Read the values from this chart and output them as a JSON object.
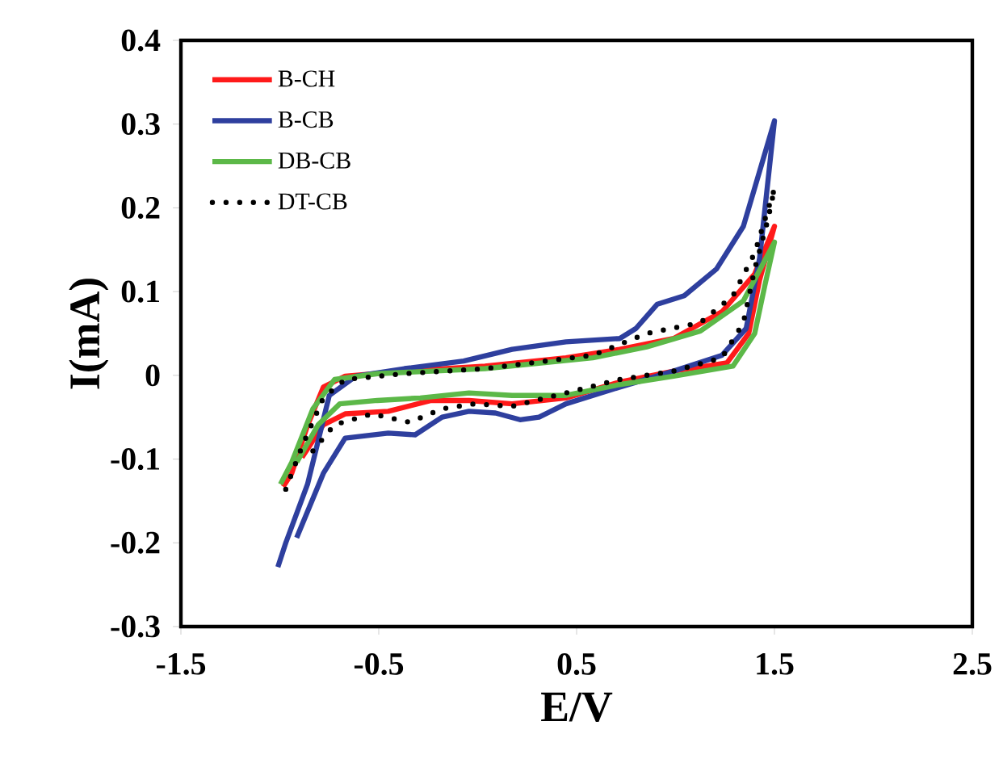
{
  "chart_data": {
    "type": "line",
    "xlabel": "E/V",
    "ylabel": "I(mA)",
    "xlim": [
      -1.5,
      2.5
    ],
    "ylim": [
      -0.3,
      0.4
    ],
    "xticks": [
      -1.5,
      -0.5,
      0.5,
      1.5,
      2.5
    ],
    "yticks": [
      -0.3,
      -0.2,
      -0.1,
      0,
      0.1,
      0.2,
      0.3,
      0.4
    ],
    "grid": false,
    "legend": "top left",
    "marker": "none",
    "series": [
      {
        "name": "B-CH",
        "color": "#ff1a1a",
        "line_style": "solid",
        "x": [
          -0.983,
          -0.94,
          -0.86,
          -0.78,
          -0.67,
          -0.37,
          0.037,
          0.446,
          0.718,
          0.99,
          1.235,
          1.4,
          1.5,
          1.425,
          1.37,
          1.26,
          0.99,
          0.718,
          0.446,
          0.174,
          -0.044,
          -0.235,
          -0.452,
          -0.67,
          -0.78,
          -0.888
        ],
        "values": [
          -0.133,
          -0.117,
          -0.06,
          -0.014,
          -0.001,
          0.005,
          0.011,
          0.021,
          0.031,
          0.044,
          0.076,
          0.121,
          0.178,
          0.114,
          0.05,
          0.015,
          0.005,
          -0.008,
          -0.027,
          -0.034,
          -0.03,
          -0.03,
          -0.043,
          -0.046,
          -0.059,
          -0.098
        ]
      },
      {
        "name": "B-CB",
        "color": "#2e3f9e",
        "line_style": "solid",
        "x": [
          -1.01,
          -0.97,
          -0.86,
          -0.75,
          -0.616,
          -0.37,
          -0.071,
          0.174,
          0.446,
          0.718,
          0.8,
          0.908,
          1.044,
          1.207,
          1.343,
          1.5,
          1.425,
          1.357,
          1.235,
          0.99,
          0.718,
          0.446,
          0.31,
          0.214,
          0.09,
          -0.044,
          -0.18,
          -0.316,
          -0.452,
          -0.67,
          -0.78,
          -0.915
        ],
        "values": [
          -0.229,
          -0.2,
          -0.13,
          -0.024,
          -0.001,
          0.008,
          0.017,
          0.031,
          0.04,
          0.044,
          0.056,
          0.085,
          0.095,
          0.127,
          0.178,
          0.304,
          0.14,
          0.056,
          0.024,
          0.005,
          -0.014,
          -0.034,
          -0.05,
          -0.053,
          -0.045,
          -0.043,
          -0.05,
          -0.071,
          -0.069,
          -0.075,
          -0.117,
          -0.194
        ]
      },
      {
        "name": "DB-CB",
        "color": "#5cb848",
        "line_style": "solid",
        "x": [
          -0.997,
          -0.94,
          -0.833,
          -0.724,
          -0.507,
          0.037,
          0.582,
          0.854,
          1.126,
          1.343,
          1.5,
          1.452,
          1.4,
          1.29,
          0.99,
          0.718,
          0.446,
          0.174,
          -0.044,
          -0.29,
          -0.507,
          -0.697,
          -0.806,
          -0.915
        ],
        "values": [
          -0.13,
          -0.104,
          -0.04,
          -0.005,
          0.002,
          0.008,
          0.021,
          0.034,
          0.053,
          0.089,
          0.159,
          0.108,
          0.05,
          0.011,
          -0.001,
          -0.011,
          -0.024,
          -0.024,
          -0.021,
          -0.027,
          -0.03,
          -0.034,
          -0.059,
          -0.104
        ]
      },
      {
        "name": "DT-CB",
        "color": "#000000",
        "line_style": "dotted",
        "x": [
          -0.97,
          -0.888,
          -0.78,
          -0.67,
          -0.37,
          0.037,
          0.582,
          0.854,
          1.126,
          1.29,
          1.4,
          1.5,
          1.466,
          1.4,
          1.343,
          1.235,
          0.99,
          0.718,
          0.446,
          0.174,
          -0.017,
          -0.18,
          -0.344,
          -0.534,
          -0.724,
          -0.86
        ],
        "values": [
          -0.136,
          -0.085,
          -0.027,
          -0.005,
          0.002,
          0.008,
          0.024,
          0.05,
          0.063,
          0.095,
          0.146,
          0.223,
          0.185,
          0.127,
          0.063,
          0.021,
          0.005,
          -0.005,
          -0.021,
          -0.037,
          -0.034,
          -0.04,
          -0.056,
          -0.046,
          -0.059,
          -0.098
        ]
      }
    ]
  }
}
